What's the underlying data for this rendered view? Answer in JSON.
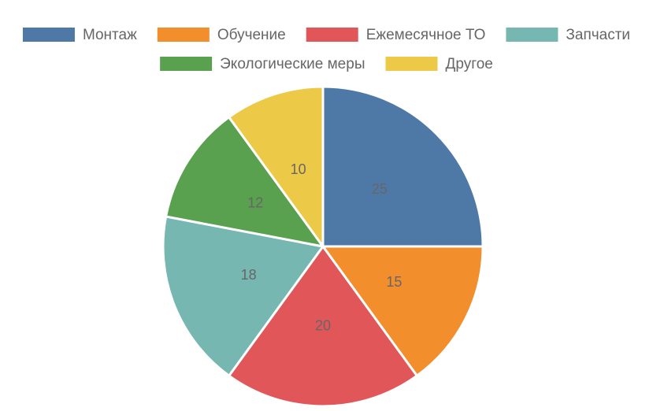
{
  "chart_data": {
    "type": "pie",
    "categories": [
      "Монтаж",
      "Обучение",
      "Ежемесячное ТО",
      "Запчасти",
      "Экологические меры",
      "Другое"
    ],
    "values": [
      25,
      15,
      20,
      18,
      12,
      10
    ],
    "colors": [
      "#4e79a7",
      "#f28e2b",
      "#e15759",
      "#76b7b2",
      "#59a14f",
      "#edc948"
    ],
    "legend": "top"
  }
}
